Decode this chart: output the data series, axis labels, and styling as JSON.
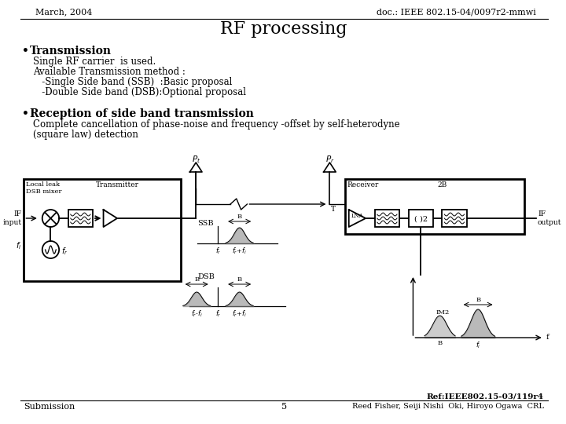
{
  "title": "RF processing",
  "top_left": "March, 2004",
  "top_right": "doc.: IEEE 802.15-04/0097r2-mmwi",
  "bullet1_bold": "Transmission",
  "bullet1_lines": [
    "Single RF carrier  is used.",
    "Available Transmission method :",
    "   -Single Side band (SSB)  :Basic proposal",
    "   -Double Side band (DSB):Optional proposal"
  ],
  "bullet2_bold": "Reception of side band transmission",
  "bullet2_lines": [
    "Complete cancellation of phase-noise and frequency -offset by self-heterodyne",
    "(square law) detection"
  ],
  "bottom_left": "Submission",
  "bottom_center": "5",
  "bottom_right": "Reed Fisher, Seiji Nishi  Oki, Hiroyo Ogawa  CRL",
  "ref": "Ref:IEEE802.15-03/119r4",
  "bg_color": "#ffffff",
  "text_color": "#000000",
  "font_family": "serif"
}
